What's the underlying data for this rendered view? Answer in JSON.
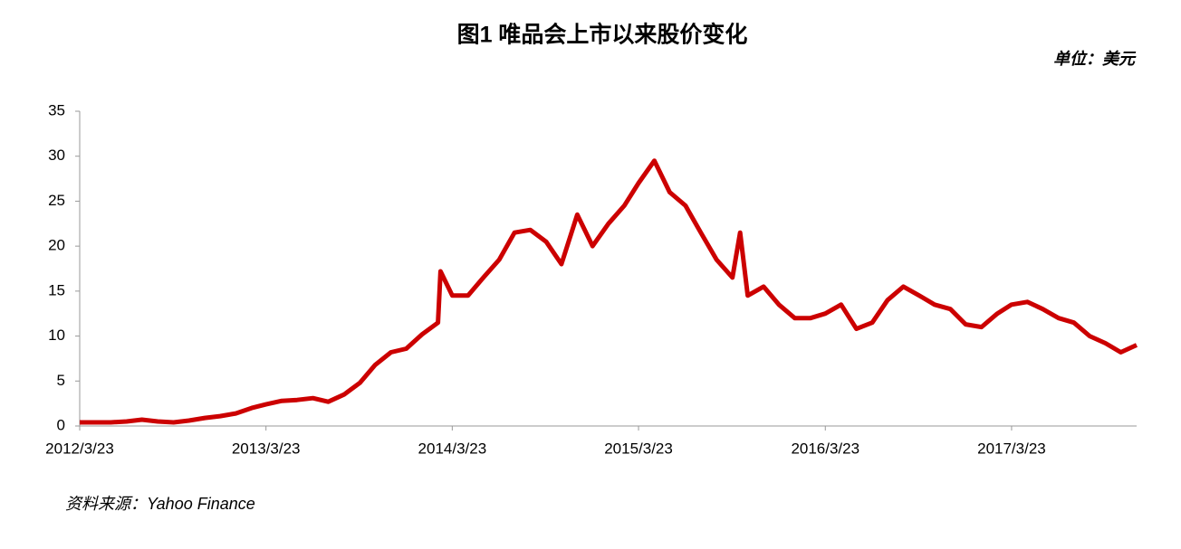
{
  "chart_data": {
    "type": "line",
    "title": "图1 唯品会上市以来股价变化",
    "unit_label": "单位：美元",
    "source": "资料来源：Yahoo Finance",
    "x": [
      "2012/3/23",
      "2012/4/23",
      "2012/5/23",
      "2012/6/23",
      "2012/7/23",
      "2012/8/23",
      "2012/9/23",
      "2012/10/23",
      "2012/11/23",
      "2012/12/23",
      "2013/1/23",
      "2013/2/23",
      "2013/3/23",
      "2013/4/23",
      "2013/5/23",
      "2013/6/23",
      "2013/7/23",
      "2013/8/23",
      "2013/9/23",
      "2013/10/23",
      "2013/11/23",
      "2013/12/23",
      "2014/1/23",
      "2014/2/23",
      "2014/2/28",
      "2014/3/23",
      "2014/4/23",
      "2014/5/23",
      "2014/6/23",
      "2014/7/23",
      "2014/8/23",
      "2014/9/23",
      "2014/10/23",
      "2014/11/23",
      "2014/12/23",
      "2015/1/23",
      "2015/2/23",
      "2015/3/23",
      "2015/4/23",
      "2015/5/23",
      "2015/6/23",
      "2015/7/23",
      "2015/8/23",
      "2015/9/23",
      "2015/10/8",
      "2015/10/23",
      "2015/11/23",
      "2015/12/23",
      "2016/1/23",
      "2016/2/23",
      "2016/3/23",
      "2016/4/23",
      "2016/5/23",
      "2016/6/23",
      "2016/7/23",
      "2016/8/23",
      "2016/9/23",
      "2016/10/23",
      "2016/11/23",
      "2016/12/23",
      "2017/1/23",
      "2017/2/23",
      "2017/3/23",
      "2017/4/23",
      "2017/5/23",
      "2017/6/23",
      "2017/7/23",
      "2017/8/23",
      "2017/9/23",
      "2017/10/23",
      "2017/11/23"
    ],
    "series": [
      {
        "name": "股价",
        "color": "#cc0000",
        "values": [
          0.4,
          0.4,
          0.4,
          0.5,
          0.7,
          0.5,
          0.4,
          0.6,
          0.9,
          1.1,
          1.4,
          2.0,
          2.4,
          2.8,
          2.9,
          3.1,
          2.7,
          3.5,
          4.8,
          6.8,
          8.2,
          8.6,
          10.2,
          11.5,
          17.2,
          14.5,
          14.5,
          16.5,
          18.5,
          21.5,
          21.8,
          20.5,
          18.0,
          23.5,
          20.0,
          22.5,
          24.5,
          27.0,
          29.5,
          26.0,
          24.5,
          21.5,
          18.5,
          16.5,
          21.5,
          14.5,
          15.5,
          13.5,
          12.0,
          12.0,
          12.5,
          13.5,
          10.8,
          11.5,
          14.0,
          15.5,
          14.5,
          13.5,
          13.0,
          11.3,
          11.0,
          12.5,
          13.5,
          13.8,
          13.0,
          12.0,
          11.5,
          10.0,
          9.2,
          8.2,
          9.0
        ]
      }
    ],
    "xlim": [
      "2012/3/23",
      "2017/11/23"
    ],
    "xticks": [
      "2012/3/23",
      "2013/3/23",
      "2014/3/23",
      "2015/3/23",
      "2016/3/23",
      "2017/3/23"
    ],
    "ylim": [
      0,
      35
    ],
    "yticks": [
      0,
      5,
      10,
      15,
      20,
      25,
      30,
      35
    ]
  }
}
